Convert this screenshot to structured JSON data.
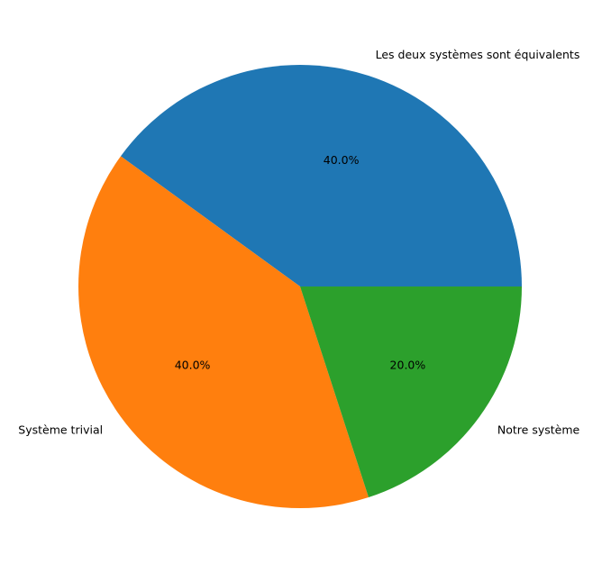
{
  "chart_data": {
    "type": "pie",
    "title": "",
    "start_angle_deg": 0,
    "direction": "counterclockwise",
    "legend": "none",
    "slices": [
      {
        "label": "Les deux systèmes sont équivalents",
        "value": 40.0,
        "pct_label": "40.0%",
        "color": "#1f77b4"
      },
      {
        "label": "Système trivial",
        "value": 40.0,
        "pct_label": "40.0%",
        "color": "#ff7f0e"
      },
      {
        "label": "Notre système",
        "value": 20.0,
        "pct_label": "20.0%",
        "color": "#2ca02c"
      }
    ]
  }
}
